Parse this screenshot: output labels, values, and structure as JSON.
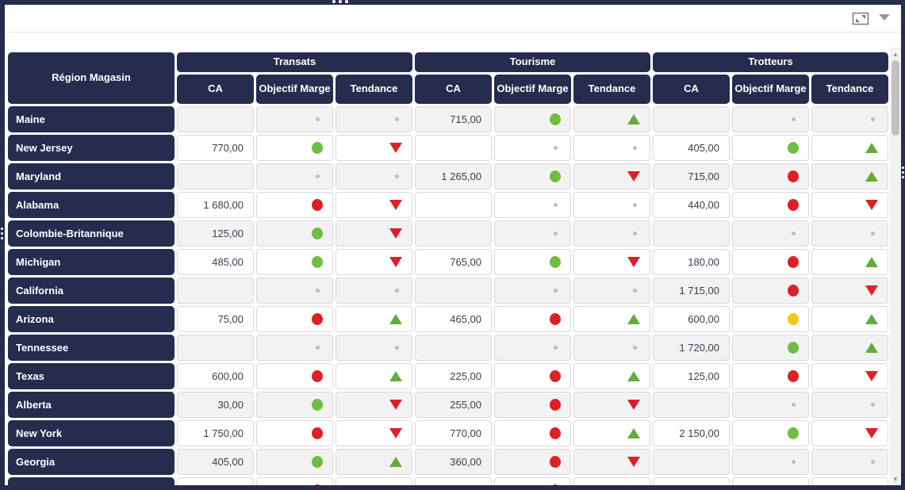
{
  "visual_header": {
    "focus_mode_icon": "focus-mode",
    "more_options_icon": "dropdown-arrow"
  },
  "frame_handles": {
    "top": "grip-dots-horizontal",
    "left": "grip-dots-vertical",
    "right": "grip-dots-vertical"
  },
  "scrollbar": {
    "up_arrow": "▲",
    "down_arrow": "▼"
  },
  "colors": {
    "header_navy": "#262c4e",
    "kpi_green": "#6fbe44",
    "kpi_red": "#dc2027",
    "kpi_yellow": "#f2c80f",
    "empty_dot_gray": "#bdbdbd",
    "alt_row_bg": "#f2f2f2",
    "cell_border": "#d9d9d9"
  },
  "matrix": {
    "corner_label": "Région Magasin",
    "groups": [
      "Transats",
      "Tourisme",
      "Trotteurs"
    ],
    "sub_columns": [
      "CA",
      "Objectif Marge",
      "Tendance"
    ],
    "rows": [
      {
        "region": "Maine",
        "cells": [
          {
            "ca": "",
            "marge": "none",
            "tendance": "none"
          },
          {
            "ca": "715,00",
            "marge": "green",
            "tendance": "up"
          },
          {
            "ca": "",
            "marge": "none",
            "tendance": "none"
          }
        ]
      },
      {
        "region": "New Jersey",
        "cells": [
          {
            "ca": "770,00",
            "marge": "green",
            "tendance": "down"
          },
          {
            "ca": "",
            "marge": "none",
            "tendance": "none"
          },
          {
            "ca": "405,00",
            "marge": "green",
            "tendance": "up"
          }
        ]
      },
      {
        "region": "Maryland",
        "cells": [
          {
            "ca": "",
            "marge": "none",
            "tendance": "none"
          },
          {
            "ca": "1 265,00",
            "marge": "green",
            "tendance": "down"
          },
          {
            "ca": "715,00",
            "marge": "red",
            "tendance": "up"
          }
        ]
      },
      {
        "region": "Alabama",
        "cells": [
          {
            "ca": "1 680,00",
            "marge": "red",
            "tendance": "down"
          },
          {
            "ca": "",
            "marge": "none",
            "tendance": "none"
          },
          {
            "ca": "440,00",
            "marge": "red",
            "tendance": "down"
          }
        ]
      },
      {
        "region": "Colombie-Britannique",
        "cells": [
          {
            "ca": "125,00",
            "marge": "green",
            "tendance": "down"
          },
          {
            "ca": "",
            "marge": "none",
            "tendance": "none"
          },
          {
            "ca": "",
            "marge": "none",
            "tendance": "none"
          }
        ]
      },
      {
        "region": "Michigan",
        "cells": [
          {
            "ca": "485,00",
            "marge": "green",
            "tendance": "down"
          },
          {
            "ca": "765,00",
            "marge": "green",
            "tendance": "down"
          },
          {
            "ca": "180,00",
            "marge": "red",
            "tendance": "up"
          }
        ]
      },
      {
        "region": "California",
        "cells": [
          {
            "ca": "",
            "marge": "none",
            "tendance": "none"
          },
          {
            "ca": "",
            "marge": "none",
            "tendance": "none"
          },
          {
            "ca": "1 715,00",
            "marge": "red",
            "tendance": "down"
          }
        ]
      },
      {
        "region": "Arizona",
        "cells": [
          {
            "ca": "75,00",
            "marge": "red",
            "tendance": "up"
          },
          {
            "ca": "465,00",
            "marge": "red",
            "tendance": "up"
          },
          {
            "ca": "600,00",
            "marge": "yellow",
            "tendance": "up"
          }
        ]
      },
      {
        "region": "Tennessee",
        "cells": [
          {
            "ca": "",
            "marge": "none",
            "tendance": "none"
          },
          {
            "ca": "",
            "marge": "none",
            "tendance": "none"
          },
          {
            "ca": "1 720,00",
            "marge": "green",
            "tendance": "up"
          }
        ]
      },
      {
        "region": "Texas",
        "cells": [
          {
            "ca": "600,00",
            "marge": "red",
            "tendance": "up"
          },
          {
            "ca": "225,00",
            "marge": "red",
            "tendance": "up"
          },
          {
            "ca": "125,00",
            "marge": "red",
            "tendance": "down"
          }
        ]
      },
      {
        "region": "Alberta",
        "cells": [
          {
            "ca": "30,00",
            "marge": "green",
            "tendance": "down"
          },
          {
            "ca": "255,00",
            "marge": "red",
            "tendance": "down"
          },
          {
            "ca": "",
            "marge": "none",
            "tendance": "none"
          }
        ]
      },
      {
        "region": "New York",
        "cells": [
          {
            "ca": "1 750,00",
            "marge": "red",
            "tendance": "down"
          },
          {
            "ca": "770,00",
            "marge": "red",
            "tendance": "up"
          },
          {
            "ca": "2 150,00",
            "marge": "green",
            "tendance": "down"
          }
        ]
      },
      {
        "region": "Georgia",
        "cells": [
          {
            "ca": "405,00",
            "marge": "green",
            "tendance": "up"
          },
          {
            "ca": "360,00",
            "marge": "red",
            "tendance": "down"
          },
          {
            "ca": "",
            "marge": "none",
            "tendance": "none"
          }
        ]
      },
      {
        "region": "",
        "cells": [
          {
            "ca": "",
            "marge": "red",
            "tendance": "down"
          },
          {
            "ca": "",
            "marge": "red",
            "tendance": "up"
          },
          {
            "ca": "",
            "marge": "none",
            "tendance": "none"
          }
        ]
      }
    ]
  }
}
